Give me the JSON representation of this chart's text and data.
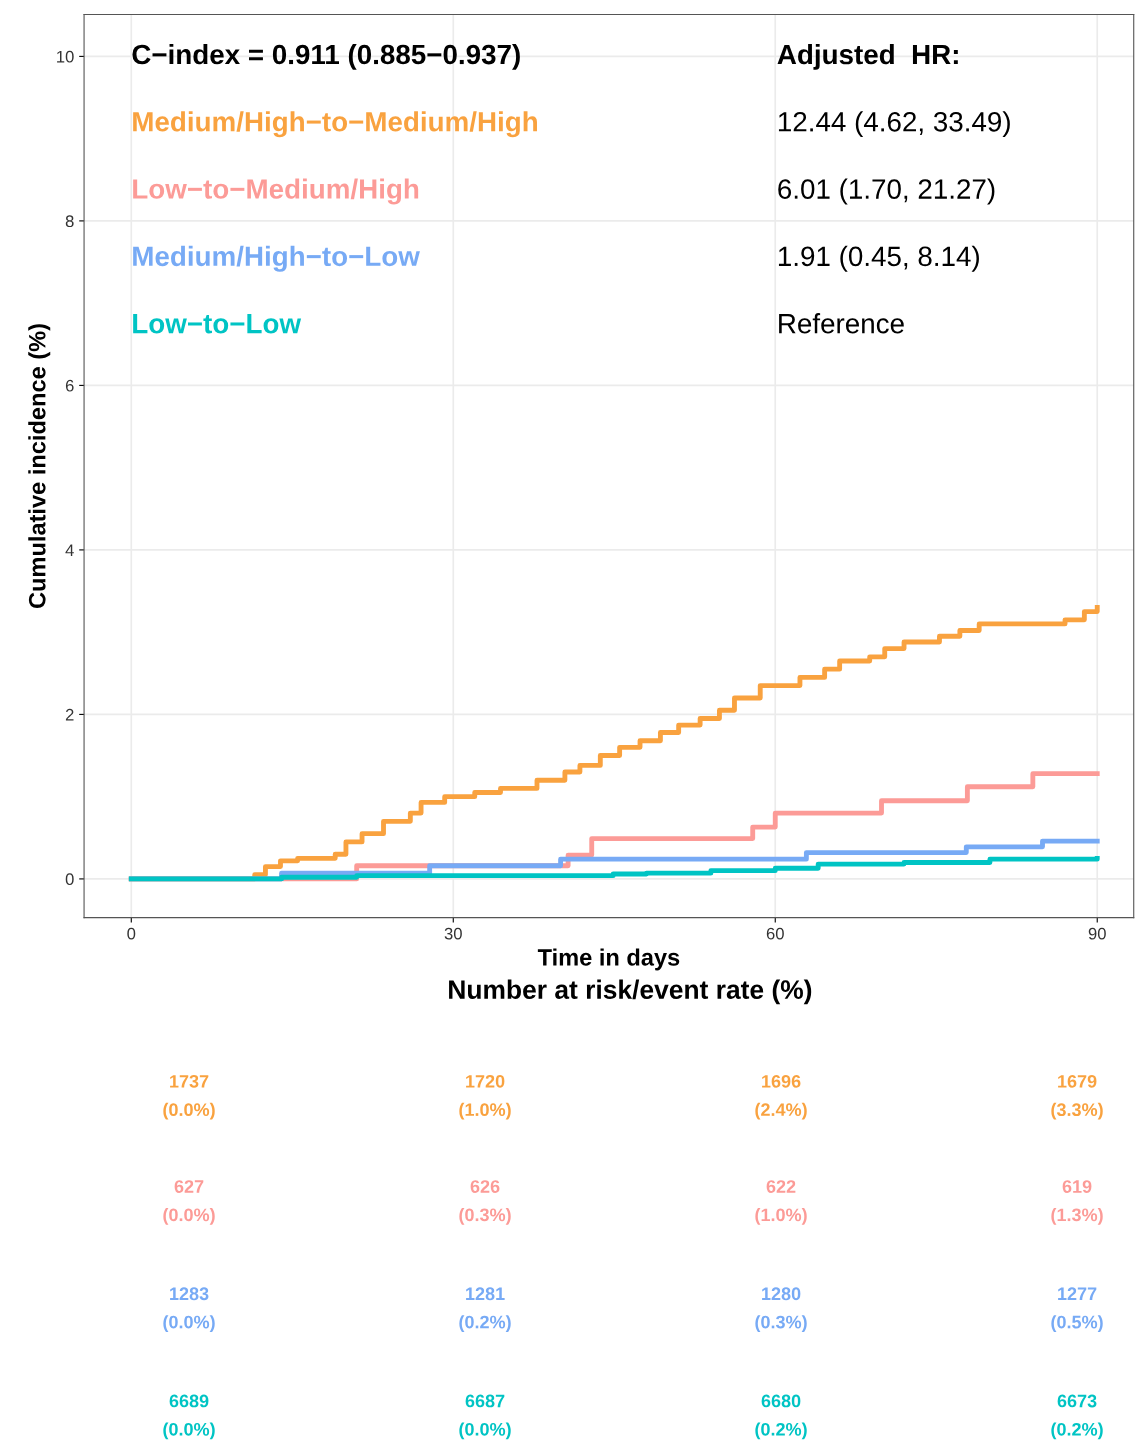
{
  "chart_data": [
    {
      "type": "step",
      "xlabel": "Time in days",
      "ylabel": "Cumulative incidence (%)",
      "xlim": [
        -4.4,
        93.4
      ],
      "ylim": [
        -0.47,
        10.51
      ],
      "xticks": [
        0,
        30,
        60,
        90
      ],
      "yticks": [
        0,
        2,
        4,
        6,
        8,
        10
      ],
      "grid": true,
      "legend": "top left",
      "annotations": [
        "C−index = 0.911 (0.885−0.937)",
        "Adjusted  HR:",
        "12.44 (4.62, 33.49)",
        "6.01 (1.70, 21.27)",
        "1.91 (0.45, 8.14)",
        "Reference"
      ],
      "series": [
        {
          "name": "Medium/High−to−Medium/High",
          "color": "#f9a23f",
          "x": [
            0,
            11.5,
            12.5,
            13.9,
            15.5,
            19,
            20,
            21.5,
            23.5,
            26,
            27,
            29.2,
            32,
            34.4,
            37.8,
            40.4,
            41.8,
            43.7,
            45.5,
            47.4,
            49.3,
            51,
            53,
            54.8,
            56.2,
            58.6,
            62.3,
            64.6,
            66,
            68.8,
            70.2,
            72,
            75.3,
            77.2,
            79,
            87,
            88.8,
            90
          ],
          "values": [
            0,
            0.05,
            0.15,
            0.22,
            0.25,
            0.3,
            0.45,
            0.55,
            0.7,
            0.8,
            0.93,
            1.0,
            1.05,
            1.1,
            1.2,
            1.3,
            1.38,
            1.5,
            1.6,
            1.68,
            1.78,
            1.87,
            1.95,
            2.05,
            2.2,
            2.35,
            2.45,
            2.55,
            2.65,
            2.7,
            2.8,
            2.88,
            2.95,
            3.02,
            3.1,
            3.15,
            3.25,
            3.3
          ]
        },
        {
          "name": "Low−to−Medium/High",
          "color": "#fc9b97",
          "x": [
            0,
            21,
            40.7,
            42.9,
            57.9,
            60,
            69.9,
            77.9,
            84,
            90
          ],
          "values": [
            0,
            0.16,
            0.29,
            0.49,
            0.63,
            0.8,
            0.95,
            1.12,
            1.28,
            1.28
          ]
        },
        {
          "name": "Medium/High−to−Low",
          "color": "#77aaf5",
          "x": [
            0,
            14,
            27.8,
            40,
            62.9,
            77.8,
            84.9,
            90
          ],
          "values": [
            0,
            0.07,
            0.16,
            0.24,
            0.32,
            0.39,
            0.46,
            0.46
          ]
        },
        {
          "name": "Low−to−Low",
          "color": "#00c4c4",
          "x": [
            0,
            14,
            21,
            44.9,
            48,
            54,
            60,
            64,
            72,
            80,
            90
          ],
          "values": [
            0,
            0.02,
            0.04,
            0.06,
            0.07,
            0.1,
            0.13,
            0.18,
            0.2,
            0.24,
            0.25
          ]
        }
      ]
    },
    {
      "type": "other",
      "title": "Number at risk/event rate (%)",
      "annotations": [
        "1737",
        "1720",
        "1696",
        "1679",
        "(0.0%)",
        "(1.0%)",
        "(2.4%)",
        "(3.3%)",
        "627",
        "626",
        "622",
        "619",
        "(0.0%)",
        "(0.3%)",
        "(1.0%)",
        "(1.3%)",
        "1283",
        "1281",
        "1280",
        "1277",
        "(0.0%)",
        "(0.2%)",
        "(0.3%)",
        "(0.5%)",
        "6689",
        "6687",
        "6680",
        "6673",
        "(0.0%)",
        "(0.0%)",
        "(0.2%)",
        "(0.2%)"
      ]
    }
  ]
}
